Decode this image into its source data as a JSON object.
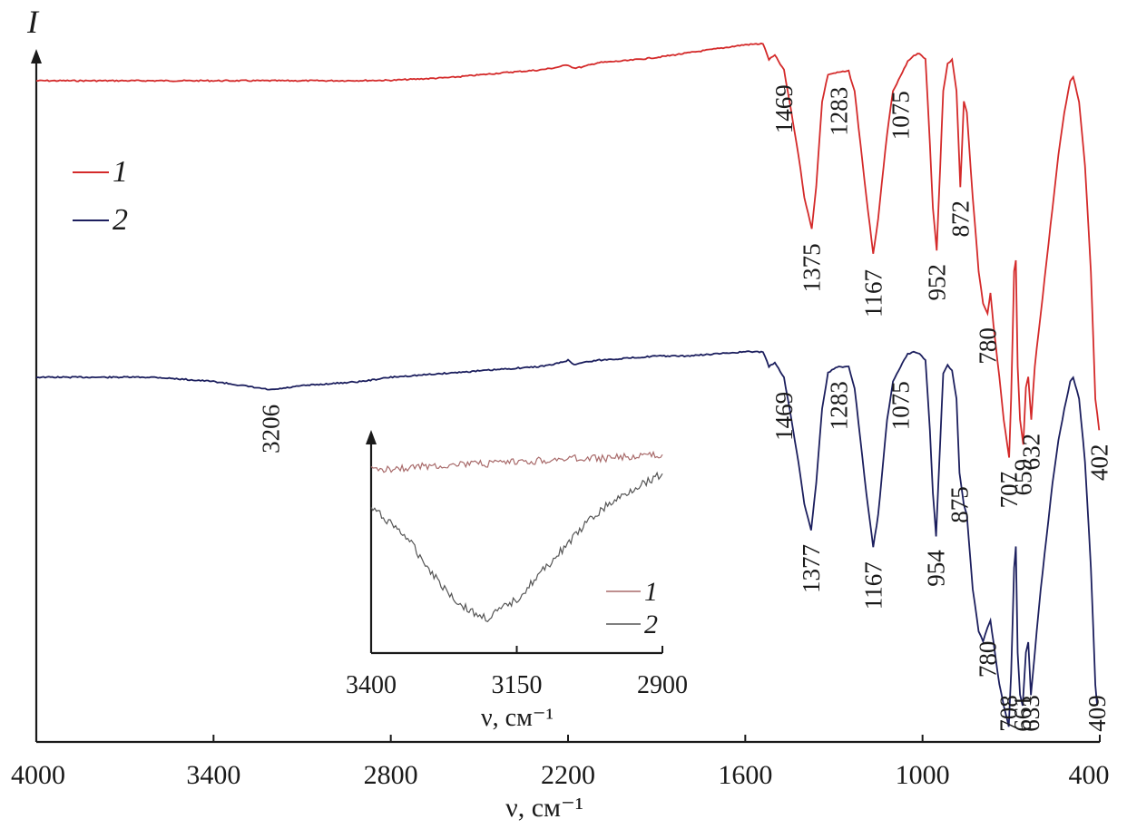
{
  "colors": {
    "series1": "#d42a2a",
    "series2": "#1c1f5e",
    "inset1": "#a86a6a",
    "inset2": "#555555",
    "axis": "#1a1a1a"
  },
  "chart_data": [
    {
      "type": "line",
      "y_axis_label": "I",
      "x_axis_label": "ν, см⁻¹",
      "xlim": [
        4000,
        400
      ],
      "x_reversed": true,
      "x_ticks": [
        "4000",
        "3400",
        "2800",
        "2200",
        "1600",
        "1000",
        "400"
      ],
      "grid": false,
      "legend_position": "upper-left",
      "series": [
        {
          "name": "1",
          "color": "#d42a2a",
          "points": [
            [
              4000,
              0.0
            ],
            [
              3500,
              0.0
            ],
            [
              3000,
              0.0
            ],
            [
              2800,
              0.002
            ],
            [
              2600,
              0.015
            ],
            [
              2400,
              0.04
            ],
            [
              2300,
              0.05
            ],
            [
              2250,
              0.06
            ],
            [
              2200,
              0.075
            ],
            [
              2180,
              0.06
            ],
            [
              2150,
              0.065
            ],
            [
              2100,
              0.085
            ],
            [
              2000,
              0.095
            ],
            [
              1900,
              0.11
            ],
            [
              1800,
              0.13
            ],
            [
              1700,
              0.15
            ],
            [
              1600,
              0.17
            ],
            [
              1540,
              0.175
            ],
            [
              1520,
              0.1
            ],
            [
              1500,
              0.12
            ],
            [
              1469,
              0.05
            ],
            [
              1450,
              -0.1
            ],
            [
              1420,
              -0.35
            ],
            [
              1400,
              -0.55
            ],
            [
              1375,
              -0.7
            ],
            [
              1360,
              -0.5
            ],
            [
              1340,
              -0.1
            ],
            [
              1320,
              0.03
            ],
            [
              1300,
              0.035
            ],
            [
              1283,
              0.04
            ],
            [
              1250,
              0.045
            ],
            [
              1230,
              -0.05
            ],
            [
              1210,
              -0.3
            ],
            [
              1190,
              -0.55
            ],
            [
              1167,
              -0.82
            ],
            [
              1150,
              -0.65
            ],
            [
              1120,
              -0.25
            ],
            [
              1100,
              -0.05
            ],
            [
              1075,
              0.02
            ],
            [
              1050,
              0.09
            ],
            [
              1030,
              0.12
            ],
            [
              1010,
              0.13
            ],
            [
              990,
              0.1
            ],
            [
              975,
              -0.3
            ],
            [
              965,
              -0.6
            ],
            [
              952,
              -0.8
            ],
            [
              940,
              -0.4
            ],
            [
              930,
              -0.05
            ],
            [
              915,
              0.08
            ],
            [
              900,
              0.1
            ],
            [
              885,
              -0.05
            ],
            [
              872,
              -0.5
            ],
            [
              860,
              -0.1
            ],
            [
              850,
              -0.15
            ],
            [
              830,
              -0.55
            ],
            [
              810,
              -0.9
            ],
            [
              795,
              -1.05
            ],
            [
              780,
              -1.1
            ],
            [
              770,
              -1.0
            ],
            [
              760,
              -1.15
            ],
            [
              740,
              -1.4
            ],
            [
              725,
              -1.6
            ],
            [
              707,
              -1.78
            ],
            [
              700,
              -1.5
            ],
            [
              690,
              -0.9
            ],
            [
              684,
              -0.85
            ],
            [
              678,
              -1.35
            ],
            [
              670,
              -1.6
            ],
            [
              659,
              -1.72
            ],
            [
              650,
              -1.45
            ],
            [
              642,
              -1.4
            ],
            [
              632,
              -1.6
            ],
            [
              620,
              -1.35
            ],
            [
              600,
              -1.1
            ],
            [
              580,
              -0.85
            ],
            [
              560,
              -0.6
            ],
            [
              540,
              -0.35
            ],
            [
              520,
              -0.15
            ],
            [
              500,
              0.0
            ],
            [
              490,
              0.02
            ],
            [
              470,
              -0.1
            ],
            [
              450,
              -0.4
            ],
            [
              430,
              -0.9
            ],
            [
              415,
              -1.5
            ],
            [
              402,
              -1.65
            ]
          ]
        },
        {
          "name": "2",
          "color": "#1c1f5e",
          "points": [
            [
              4000,
              -1.4
            ],
            [
              3800,
              -1.4
            ],
            [
              3600,
              -1.4
            ],
            [
              3500,
              -1.41
            ],
            [
              3400,
              -1.42
            ],
            [
              3300,
              -1.44
            ],
            [
              3206,
              -1.46
            ],
            [
              3150,
              -1.45
            ],
            [
              3100,
              -1.44
            ],
            [
              3000,
              -1.43
            ],
            [
              2900,
              -1.42
            ],
            [
              2800,
              -1.4
            ],
            [
              2700,
              -1.39
            ],
            [
              2600,
              -1.38
            ],
            [
              2500,
              -1.37
            ],
            [
              2400,
              -1.36
            ],
            [
              2300,
              -1.35
            ],
            [
              2250,
              -1.34
            ],
            [
              2200,
              -1.32
            ],
            [
              2180,
              -1.34
            ],
            [
              2150,
              -1.33
            ],
            [
              2100,
              -1.32
            ],
            [
              2000,
              -1.31
            ],
            [
              1900,
              -1.3
            ],
            [
              1800,
              -1.3
            ],
            [
              1700,
              -1.29
            ],
            [
              1600,
              -1.28
            ],
            [
              1540,
              -1.28
            ],
            [
              1520,
              -1.35
            ],
            [
              1500,
              -1.33
            ],
            [
              1469,
              -1.4
            ],
            [
              1450,
              -1.55
            ],
            [
              1420,
              -1.8
            ],
            [
              1400,
              -2.0
            ],
            [
              1377,
              -2.12
            ],
            [
              1360,
              -1.9
            ],
            [
              1340,
              -1.55
            ],
            [
              1320,
              -1.38
            ],
            [
              1300,
              -1.36
            ],
            [
              1283,
              -1.35
            ],
            [
              1250,
              -1.35
            ],
            [
              1230,
              -1.45
            ],
            [
              1210,
              -1.7
            ],
            [
              1190,
              -1.95
            ],
            [
              1167,
              -2.2
            ],
            [
              1150,
              -2.05
            ],
            [
              1120,
              -1.6
            ],
            [
              1100,
              -1.42
            ],
            [
              1075,
              -1.35
            ],
            [
              1050,
              -1.29
            ],
            [
              1030,
              -1.28
            ],
            [
              1010,
              -1.29
            ],
            [
              990,
              -1.32
            ],
            [
              975,
              -1.65
            ],
            [
              965,
              -1.95
            ],
            [
              954,
              -2.15
            ],
            [
              940,
              -1.7
            ],
            [
              930,
              -1.38
            ],
            [
              915,
              -1.34
            ],
            [
              900,
              -1.37
            ],
            [
              885,
              -1.5
            ],
            [
              875,
              -1.85
            ],
            [
              860,
              -2.0
            ],
            [
              850,
              -2.05
            ],
            [
              830,
              -2.4
            ],
            [
              810,
              -2.6
            ],
            [
              795,
              -2.65
            ],
            [
              780,
              -2.58
            ],
            [
              770,
              -2.55
            ],
            [
              760,
              -2.65
            ],
            [
              740,
              -2.85
            ],
            [
              725,
              -2.95
            ],
            [
              708,
              -3.05
            ],
            [
              700,
              -2.8
            ],
            [
              690,
              -2.3
            ],
            [
              684,
              -2.2
            ],
            [
              678,
              -2.7
            ],
            [
              670,
              -2.9
            ],
            [
              661,
              -2.95
            ],
            [
              650,
              -2.7
            ],
            [
              642,
              -2.65
            ],
            [
              633,
              -2.9
            ],
            [
              620,
              -2.7
            ],
            [
              600,
              -2.4
            ],
            [
              580,
              -2.15
            ],
            [
              560,
              -1.9
            ],
            [
              540,
              -1.7
            ],
            [
              520,
              -1.55
            ],
            [
              500,
              -1.42
            ],
            [
              490,
              -1.4
            ],
            [
              470,
              -1.5
            ],
            [
              450,
              -1.8
            ],
            [
              430,
              -2.3
            ],
            [
              415,
              -2.85
            ],
            [
              409,
              -2.95
            ]
          ]
        }
      ],
      "peak_labels": {
        "series1": [
          [
            "1469",
            1469
          ],
          [
            "1375",
            1375
          ],
          [
            "1283",
            1283
          ],
          [
            "1167",
            1167
          ],
          [
            "1075",
            1075
          ],
          [
            "952",
            952
          ],
          [
            "872",
            872
          ],
          [
            "780",
            780
          ],
          [
            "707",
            707
          ],
          [
            "659",
            659
          ],
          [
            "632",
            632
          ],
          [
            "402",
            402
          ]
        ],
        "series2": [
          [
            "3206",
            3206
          ],
          [
            "1469",
            1469
          ],
          [
            "1377",
            1377
          ],
          [
            "1283",
            1283
          ],
          [
            "1167",
            1167
          ],
          [
            "1075",
            1075
          ],
          [
            "954",
            954
          ],
          [
            "875",
            875
          ],
          [
            "780",
            780
          ],
          [
            "708",
            708
          ],
          [
            "661",
            661
          ],
          [
            "633",
            633
          ],
          [
            "409",
            409
          ]
        ]
      },
      "legend": [
        "1",
        "2"
      ]
    },
    {
      "type": "line",
      "role": "inset",
      "x_axis_label": "ν, см⁻¹",
      "xlim": [
        3400,
        2900
      ],
      "x_reversed": true,
      "x_ticks": [
        "3400",
        "3150",
        "2900"
      ],
      "grid": false,
      "legend_position": "lower-right",
      "series": [
        {
          "name": "1",
          "color": "#a86a6a",
          "points": [
            [
              3400,
              0.0
            ],
            [
              3350,
              0.01
            ],
            [
              3300,
              0.02
            ],
            [
              3250,
              0.03
            ],
            [
              3200,
              0.03
            ],
            [
              3150,
              0.04
            ],
            [
              3100,
              0.05
            ],
            [
              3050,
              0.06
            ],
            [
              3000,
              0.06
            ],
            [
              2950,
              0.07
            ],
            [
              2900,
              0.08
            ]
          ]
        },
        {
          "name": "2",
          "color": "#555555",
          "points": [
            [
              3400,
              -0.2
            ],
            [
              3370,
              -0.27
            ],
            [
              3340,
              -0.35
            ],
            [
              3310,
              -0.48
            ],
            [
              3280,
              -0.6
            ],
            [
              3250,
              -0.7
            ],
            [
              3220,
              -0.76
            ],
            [
              3200,
              -0.78
            ],
            [
              3180,
              -0.74
            ],
            [
              3150,
              -0.68
            ],
            [
              3120,
              -0.58
            ],
            [
              3090,
              -0.48
            ],
            [
              3060,
              -0.38
            ],
            [
              3030,
              -0.28
            ],
            [
              3000,
              -0.2
            ],
            [
              2970,
              -0.14
            ],
            [
              2940,
              -0.08
            ],
            [
              2900,
              -0.02
            ]
          ]
        }
      ],
      "legend": [
        "1",
        "2"
      ]
    }
  ]
}
